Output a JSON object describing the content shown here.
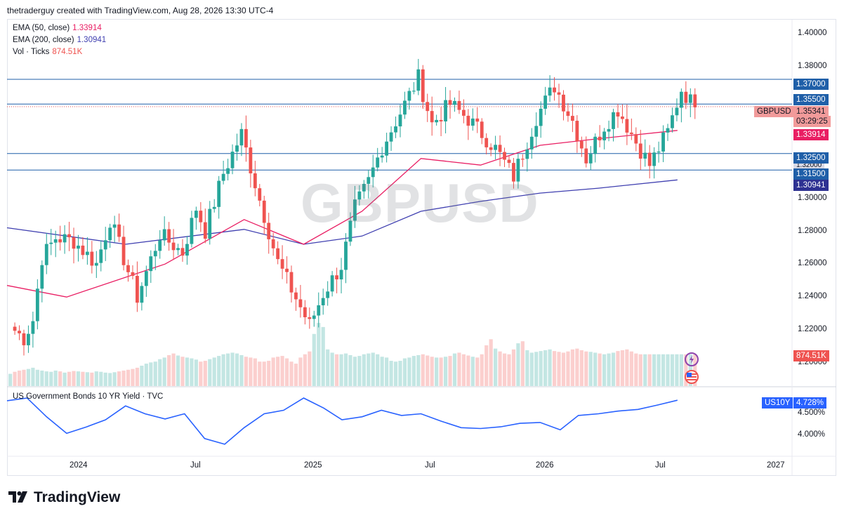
{
  "header": {
    "text": "thetraderguy created with TradingView.com, Aug 28, 2026 13:30 UTC-4"
  },
  "legend": {
    "ema50_label": "EMA (50, close)",
    "ema50_value": "1.33914",
    "ema200_label": "EMA (200, close)",
    "ema200_value": "1.30941",
    "vol_label": "Vol · Ticks",
    "vol_value": "874.51K"
  },
  "watermark": "GBPUSD",
  "symbol_tag": {
    "name": "GBPUSD",
    "price": "1.35341",
    "countdown": "03:29:25"
  },
  "price_tags": {
    "ema50": "1.33914",
    "ema200": "1.30941",
    "volume": "874.51K",
    "partial_hidden": "1.32000",
    "lines": [
      "1.37000",
      "1.35500",
      "1.32500",
      "1.31500"
    ]
  },
  "price_axis": [
    "1.40000",
    "1.38000",
    "1.30000",
    "1.28000",
    "1.26000",
    "1.24000",
    "1.22000",
    "1.20000"
  ],
  "yield_panel": {
    "title": "US Government Bonds 10 YR Yield · TVC",
    "symbol": "US10Y",
    "value": "4.728%",
    "ticks": [
      "4.500%",
      "4.000%"
    ]
  },
  "time_axis": [
    "2024",
    "Jul",
    "2025",
    "Jul",
    "2026",
    "Jul",
    "2027"
  ],
  "footer": {
    "brand": "TradingView"
  },
  "colors": {
    "up": "#26a69a",
    "down": "#ef5350",
    "ema50": "#e91e63",
    "ema200": "#3f3fb0",
    "hline": "#1f5fa8",
    "tag_blue": "#2962ff",
    "yield": "#2962ff"
  },
  "chart_data": [
    {
      "type": "candlestick",
      "symbol": "GBPUSD",
      "timeframe": "weekly",
      "x_range": [
        "2023-10",
        "2027-01"
      ],
      "ylim": [
        1.195,
        1.41
      ],
      "horizontal_levels": [
        1.37,
        1.355,
        1.325,
        1.315
      ],
      "last_price": 1.35341,
      "anchor_closes": [
        [
          "2023-10-06",
          1.22
        ],
        [
          "2023-10-27",
          1.213
        ],
        [
          "2023-11-10",
          1.224
        ],
        [
          "2023-11-24",
          1.262
        ],
        [
          "2023-12-15",
          1.274
        ],
        [
          "2024-01-12",
          1.272
        ],
        [
          "2024-02-16",
          1.258
        ],
        [
          "2024-03-08",
          1.285
        ],
        [
          "2024-04-19",
          1.238
        ],
        [
          "2024-05-24",
          1.276
        ],
        [
          "2024-06-28",
          1.265
        ],
        [
          "2024-07-19",
          1.292
        ],
        [
          "2024-08-02",
          1.278
        ],
        [
          "2024-08-30",
          1.313
        ],
        [
          "2024-09-27",
          1.337
        ],
        [
          "2024-10-25",
          1.297
        ],
        [
          "2024-11-22",
          1.259
        ],
        [
          "2025-01-10",
          1.221
        ],
        [
          "2025-01-31",
          1.24
        ],
        [
          "2025-02-28",
          1.257
        ],
        [
          "2025-03-21",
          1.292
        ],
        [
          "2025-04-11",
          1.308
        ],
        [
          "2025-05-02",
          1.329
        ],
        [
          "2025-06-06",
          1.355
        ],
        [
          "2025-06-27",
          1.371
        ],
        [
          "2025-07-18",
          1.343
        ],
        [
          "2025-08-15",
          1.355
        ],
        [
          "2025-09-12",
          1.346
        ],
        [
          "2025-10-24",
          1.328
        ],
        [
          "2025-11-21",
          1.311
        ],
        [
          "2025-12-26",
          1.347
        ],
        [
          "2026-01-23",
          1.366
        ],
        [
          "2026-02-20",
          1.345
        ],
        [
          "2026-03-13",
          1.322
        ],
        [
          "2026-04-10",
          1.342
        ],
        [
          "2026-05-01",
          1.352
        ],
        [
          "2026-05-29",
          1.332
        ],
        [
          "2026-06-19",
          1.318
        ],
        [
          "2026-07-17",
          1.338
        ],
        [
          "2026-08-07",
          1.364
        ],
        [
          "2026-08-28",
          1.353
        ]
      ]
    },
    {
      "type": "line",
      "name": "EMA (50, close)",
      "x": [
        "2023-10",
        "2024-01",
        "2024-06",
        "2024-10",
        "2025-01",
        "2025-04",
        "2025-07",
        "2025-10",
        "2026-01",
        "2026-04",
        "2026-08"
      ],
      "y": [
        1.245,
        1.238,
        1.258,
        1.285,
        1.27,
        1.29,
        1.322,
        1.318,
        1.33,
        1.334,
        1.339
      ]
    },
    {
      "type": "line",
      "name": "EMA (200, close)",
      "x": [
        "2023-10",
        "2024-04",
        "2024-10",
        "2025-01",
        "2025-04",
        "2025-07",
        "2025-10",
        "2026-01",
        "2026-04",
        "2026-08"
      ],
      "y": [
        1.28,
        1.27,
        1.279,
        1.27,
        1.275,
        1.29,
        1.296,
        1.301,
        1.304,
        1.309
      ]
    },
    {
      "type": "bar",
      "name": "Vol · Ticks",
      "last_value": "874.51K",
      "relative_values": [
        0.3,
        0.35,
        0.38,
        0.4,
        0.42,
        0.45,
        0.4,
        0.38,
        0.36,
        0.35,
        0.38,
        0.36,
        0.33,
        0.35,
        0.37,
        0.36,
        0.35,
        0.34,
        0.33,
        0.36,
        0.35,
        0.33,
        0.32,
        0.34,
        0.36,
        0.38,
        0.4,
        0.42,
        0.45,
        0.5,
        0.55,
        0.58,
        0.6,
        0.66,
        0.7,
        0.76,
        0.8,
        0.75,
        0.72,
        0.7,
        0.68,
        0.65,
        0.6,
        0.62,
        0.66,
        0.7,
        0.74,
        0.78,
        0.8,
        0.82,
        0.8,
        0.76,
        0.72,
        0.7,
        0.68,
        0.6,
        0.6,
        0.62,
        0.7,
        0.72,
        0.74,
        0.68,
        0.6,
        0.55,
        0.7,
        0.78,
        0.85,
        1.28,
        1.55,
        1.45,
        0.9,
        0.82,
        0.78,
        0.78,
        0.8,
        0.76,
        0.72,
        0.74,
        0.78,
        0.8,
        0.82,
        0.78,
        0.72,
        0.7,
        0.62,
        0.6,
        0.62,
        0.68,
        0.7,
        0.74,
        0.76,
        0.78,
        0.75,
        0.72,
        0.7,
        0.7,
        0.72,
        0.74,
        0.8,
        0.82,
        0.78,
        0.75,
        0.72,
        0.7,
        0.78,
        1.0,
        1.15,
        0.92,
        0.85,
        0.8,
        0.78,
        0.9,
        1.05,
        1.1,
        0.88,
        0.82,
        0.84,
        0.86,
        0.88,
        0.9,
        0.86,
        0.84,
        0.82,
        0.85,
        0.9,
        0.92,
        0.88,
        0.85,
        0.84,
        0.82,
        0.8,
        0.78,
        0.8,
        0.82,
        0.86,
        0.88,
        0.9,
        0.85,
        0.8,
        0.78
      ]
    },
    {
      "type": "line",
      "name": "US Government Bonds 10 YR Yield · TVC",
      "ylim": [
        3.62,
        4.9
      ],
      "x": [
        "2023-10",
        "2023-11",
        "2023-12",
        "2024-01",
        "2024-02",
        "2024-03",
        "2024-04",
        "2024-05",
        "2024-06",
        "2024-07",
        "2024-08",
        "2024-09",
        "2024-10",
        "2024-11",
        "2024-12",
        "2025-01",
        "2025-02",
        "2025-03",
        "2025-04",
        "2025-05",
        "2025-06",
        "2025-07",
        "2025-08",
        "2025-09",
        "2025-10",
        "2025-11",
        "2025-12",
        "2026-01",
        "2026-02",
        "2026-03",
        "2026-04",
        "2026-05",
        "2026-06",
        "2026-07",
        "2026-08"
      ],
      "y": [
        4.72,
        4.78,
        4.35,
        3.97,
        4.12,
        4.28,
        4.6,
        4.42,
        4.3,
        4.42,
        3.85,
        3.72,
        4.1,
        4.42,
        4.5,
        4.78,
        4.55,
        4.28,
        4.35,
        4.5,
        4.38,
        4.42,
        4.25,
        4.1,
        4.08,
        4.12,
        4.2,
        4.22,
        4.05,
        4.38,
        4.42,
        4.48,
        4.52,
        4.62,
        4.73
      ]
    }
  ]
}
